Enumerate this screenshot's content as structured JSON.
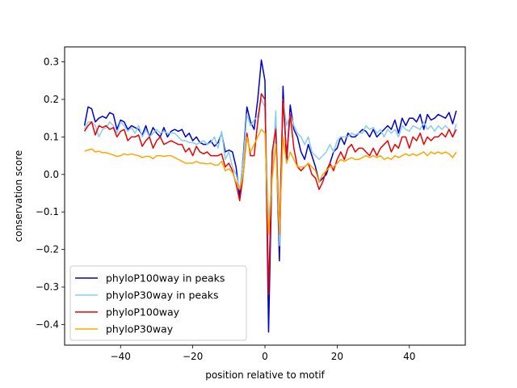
{
  "chart_data": {
    "type": "line",
    "xlabel": "position relative to motif",
    "ylabel": "conservation score",
    "xlim": [
      -55.5,
      55.5
    ],
    "ylim": [
      -0.455,
      0.34
    ],
    "xticks": [
      -40,
      -20,
      0,
      20,
      40
    ],
    "yticks": [
      -0.4,
      -0.3,
      -0.2,
      -0.1,
      0.0,
      0.1,
      0.2,
      0.3
    ],
    "xtick_labels": [
      "−40",
      "−20",
      "0",
      "20",
      "40"
    ],
    "ytick_labels": [
      "−0.4",
      "−0.3",
      "−0.2",
      "−0.1",
      "0.0",
      "0.1",
      "0.2",
      "0.3"
    ],
    "grid": false,
    "legend_position": "lower-left",
    "x_start": -50,
    "x_step": 1,
    "series": [
      {
        "name": "phyloP100way in peaks",
        "color": "#0000cd",
        "values": [
          0.13,
          0.18,
          0.175,
          0.14,
          0.15,
          0.155,
          0.15,
          0.165,
          0.16,
          0.12,
          0.145,
          0.14,
          0.12,
          0.13,
          0.125,
          0.12,
          0.105,
          0.13,
          0.1,
          0.125,
          0.11,
          0.1,
          0.125,
          0.1,
          0.115,
          0.12,
          0.115,
          0.12,
          0.1,
          0.11,
          0.09,
          0.1,
          0.085,
          0.08,
          0.08,
          0.09,
          0.075,
          0.085,
          0.11,
          0.06,
          0.065,
          0.06,
          0.02,
          -0.06,
          0.05,
          0.18,
          0.14,
          0.12,
          0.2,
          0.305,
          0.25,
          -0.42,
          0.05,
          0.13,
          -0.23,
          0.235,
          0.03,
          0.185,
          0.12,
          0.1,
          0.06,
          0.04,
          0.08,
          0.05,
          0.02,
          -0.02,
          -0.01,
          0.0,
          0.03,
          0.06,
          0.07,
          0.1,
          0.08,
          0.11,
          0.1,
          0.1,
          0.11,
          0.12,
          0.115,
          0.1,
          0.12,
          0.1,
          0.11,
          0.12,
          0.13,
          0.12,
          0.145,
          0.11,
          0.15,
          0.13,
          0.15,
          0.15,
          0.14,
          0.16,
          0.12,
          0.16,
          0.145,
          0.15,
          0.16,
          0.155,
          0.15,
          0.165,
          0.135,
          0.17
        ]
      },
      {
        "name": "phyloP30way in peaks",
        "color": "#87ceeb",
        "values": [
          0.12,
          0.14,
          0.14,
          0.13,
          0.1,
          0.12,
          0.125,
          0.14,
          0.13,
          0.11,
          0.14,
          0.13,
          0.115,
          0.125,
          0.11,
          0.13,
          0.1,
          0.12,
          0.1,
          0.11,
          0.12,
          0.11,
          0.115,
          0.11,
          0.11,
          0.11,
          0.1,
          0.09,
          0.09,
          0.085,
          0.085,
          0.08,
          0.085,
          0.09,
          0.08,
          0.085,
          0.1,
          0.07,
          0.115,
          0.04,
          0.06,
          0.02,
          0.0,
          -0.04,
          0.04,
          0.16,
          0.13,
          0.145,
          0.155,
          0.2,
          0.18,
          -0.13,
          0.0,
          0.17,
          -0.19,
          0.2,
          0.13,
          0.16,
          0.13,
          0.11,
          0.1,
          0.08,
          0.1,
          0.06,
          0.05,
          0.04,
          0.05,
          0.06,
          0.08,
          0.06,
          0.09,
          0.1,
          0.1,
          0.1,
          0.11,
          0.105,
          0.11,
          0.11,
          0.13,
          0.12,
          0.125,
          0.11,
          0.12,
          0.1,
          0.12,
          0.11,
          0.12,
          0.1,
          0.13,
          0.12,
          0.115,
          0.13,
          0.125,
          0.12,
          0.14,
          0.12,
          0.13,
          0.115,
          0.13,
          0.12,
          0.13,
          0.12,
          0.1,
          0.135
        ]
      },
      {
        "name": "phyloP100way",
        "color": "#ee0000",
        "values": [
          0.115,
          0.13,
          0.14,
          0.105,
          0.13,
          0.125,
          0.13,
          0.12,
          0.125,
          0.1,
          0.115,
          0.12,
          0.09,
          0.1,
          0.1,
          0.105,
          0.075,
          0.09,
          0.1,
          0.07,
          0.09,
          0.1,
          0.08,
          0.085,
          0.09,
          0.085,
          0.08,
          0.08,
          0.06,
          0.07,
          0.05,
          0.075,
          0.06,
          0.055,
          0.06,
          0.05,
          0.05,
          0.05,
          0.055,
          0.02,
          0.03,
          0.01,
          -0.025,
          -0.07,
          0.0,
          0.11,
          0.05,
          0.05,
          0.14,
          0.215,
          0.2,
          -0.32,
          0.06,
          0.12,
          -0.16,
          0.2,
          0.05,
          0.16,
          0.07,
          0.02,
          0.01,
          0.02,
          0.03,
          0.0,
          -0.01,
          -0.04,
          -0.02,
          0.01,
          0.03,
          0.01,
          0.04,
          0.06,
          0.04,
          0.07,
          0.08,
          0.06,
          0.07,
          0.07,
          0.06,
          0.05,
          0.07,
          0.05,
          0.07,
          0.08,
          0.09,
          0.06,
          0.08,
          0.07,
          0.1,
          0.1,
          0.07,
          0.1,
          0.09,
          0.11,
          0.08,
          0.1,
          0.09,
          0.1,
          0.1,
          0.11,
          0.1,
          0.12,
          0.1,
          0.12
        ]
      },
      {
        "name": "phyloP30way",
        "color": "#ffa500",
        "values": [
          0.062,
          0.065,
          0.068,
          0.06,
          0.062,
          0.058,
          0.058,
          0.055,
          0.052,
          0.048,
          0.05,
          0.055,
          0.052,
          0.055,
          0.052,
          0.05,
          0.045,
          0.048,
          0.048,
          0.042,
          0.05,
          0.05,
          0.048,
          0.05,
          0.05,
          0.045,
          0.04,
          0.035,
          0.03,
          0.03,
          0.03,
          0.035,
          0.03,
          0.03,
          0.028,
          0.03,
          0.025,
          0.025,
          0.035,
          0.01,
          0.015,
          0.005,
          -0.02,
          -0.04,
          0.0,
          0.1,
          0.06,
          0.08,
          0.1,
          0.12,
          0.11,
          -0.16,
          -0.01,
          0.08,
          -0.16,
          0.1,
          0.03,
          0.06,
          0.04,
          0.02,
          0.02,
          0.02,
          0.03,
          0.02,
          0.01,
          -0.02,
          0.0,
          0.01,
          0.02,
          0.02,
          0.03,
          0.04,
          0.035,
          0.04,
          0.045,
          0.04,
          0.04,
          0.045,
          0.05,
          0.045,
          0.05,
          0.045,
          0.05,
          0.04,
          0.045,
          0.04,
          0.05,
          0.045,
          0.05,
          0.055,
          0.05,
          0.055,
          0.05,
          0.055,
          0.06,
          0.05,
          0.06,
          0.055,
          0.06,
          0.055,
          0.06,
          0.055,
          0.045,
          0.06
        ]
      }
    ]
  }
}
